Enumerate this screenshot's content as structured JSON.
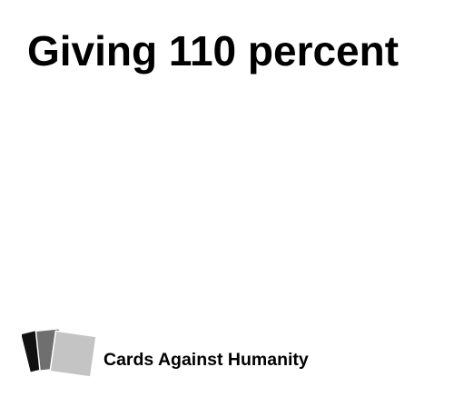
{
  "card": {
    "text": "Giving 110 percent",
    "brand": "Cards Against Humanity",
    "logo_icon": "stacked-cards-icon",
    "colors": {
      "background": "#ffffff",
      "text": "#000000",
      "logo_back": "#111111",
      "logo_middle": "#6f6f6f",
      "logo_front": "#c4c4c4"
    }
  }
}
